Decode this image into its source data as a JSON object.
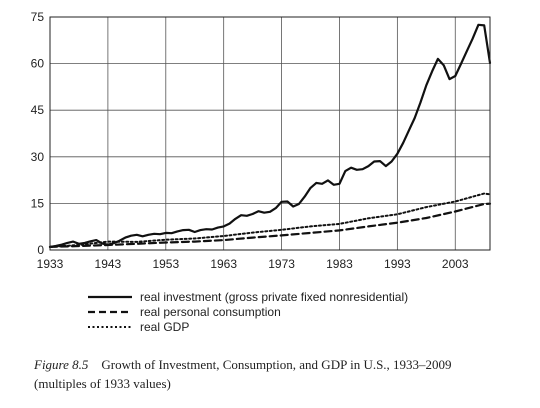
{
  "chart_data": {
    "type": "line",
    "xlim": [
      1933,
      2009
    ],
    "ylim": [
      0,
      75
    ],
    "xticks": [
      1933,
      1943,
      1953,
      1963,
      1973,
      1983,
      1993,
      2003
    ],
    "yticks": [
      0,
      15,
      30,
      45,
      60,
      75
    ],
    "grid": true,
    "legend_position": "bottom",
    "series": [
      {
        "name": "real investment (gross private fixed nonresidential)",
        "style": "solid",
        "x": [
          1933,
          1934,
          1935,
          1936,
          1937,
          1938,
          1939,
          1940,
          1941,
          1942,
          1943,
          1944,
          1945,
          1946,
          1947,
          1948,
          1949,
          1950,
          1951,
          1952,
          1953,
          1954,
          1955,
          1956,
          1957,
          1958,
          1959,
          1960,
          1961,
          1962,
          1963,
          1964,
          1965,
          1966,
          1967,
          1968,
          1969,
          1970,
          1971,
          1972,
          1973,
          1974,
          1975,
          1976,
          1977,
          1978,
          1979,
          1980,
          1981,
          1982,
          1983,
          1984,
          1985,
          1986,
          1987,
          1988,
          1989,
          1990,
          1991,
          1992,
          1993,
          1994,
          1995,
          1996,
          1997,
          1998,
          1999,
          2000,
          2001,
          2002,
          2003,
          2004,
          2005,
          2006,
          2007,
          2008,
          2009
        ],
        "values": [
          1.0,
          1.3,
          1.7,
          2.3,
          2.7,
          2.0,
          2.3,
          2.8,
          3.2,
          2.1,
          1.7,
          2.2,
          3.0,
          4.0,
          4.6,
          4.9,
          4.4,
          4.9,
          5.2,
          5.1,
          5.5,
          5.4,
          6.0,
          6.4,
          6.5,
          5.8,
          6.4,
          6.7,
          6.6,
          7.2,
          7.6,
          8.5,
          10.0,
          11.2,
          11.0,
          11.6,
          12.5,
          12.0,
          12.3,
          13.5,
          15.5,
          15.6,
          14.0,
          14.8,
          17.2,
          20.0,
          21.6,
          21.3,
          22.4,
          21.0,
          21.3,
          25.4,
          26.5,
          25.8,
          26.0,
          27.0,
          28.5,
          28.6,
          27.0,
          28.5,
          31.0,
          34.5,
          38.5,
          42.5,
          47.5,
          53.0,
          57.5,
          61.5,
          59.5,
          55.0,
          56.0,
          60.0,
          64.0,
          68.0,
          72.5,
          72.3,
          60.2
        ]
      },
      {
        "name": "real personal consumption",
        "style": "dashed",
        "x": [
          1933,
          1938,
          1943,
          1948,
          1953,
          1958,
          1963,
          1968,
          1973,
          1978,
          1983,
          1988,
          1993,
          1998,
          2003,
          2008,
          2009
        ],
        "values": [
          1.0,
          1.3,
          1.6,
          2.0,
          2.4,
          2.7,
          3.2,
          4.0,
          4.7,
          5.5,
          6.3,
          7.6,
          8.8,
          10.3,
          12.4,
          14.8,
          14.9
        ]
      },
      {
        "name": "real GDP",
        "style": "dotted",
        "x": [
          1933,
          1938,
          1943,
          1948,
          1953,
          1958,
          1963,
          1968,
          1973,
          1978,
          1983,
          1988,
          1993,
          1998,
          2003,
          2008,
          2009
        ],
        "values": [
          1.0,
          1.6,
          2.7,
          2.6,
          3.3,
          3.7,
          4.5,
          5.6,
          6.5,
          7.6,
          8.4,
          10.2,
          11.5,
          13.8,
          15.6,
          18.2,
          17.9
        ]
      }
    ]
  },
  "caption": {
    "figure_label": "Figure 8.5",
    "title": "Growth of Investment, Consumption, and GDP in U.S., 1933–2009",
    "subtitle": "(multiples of 1933 values)"
  }
}
